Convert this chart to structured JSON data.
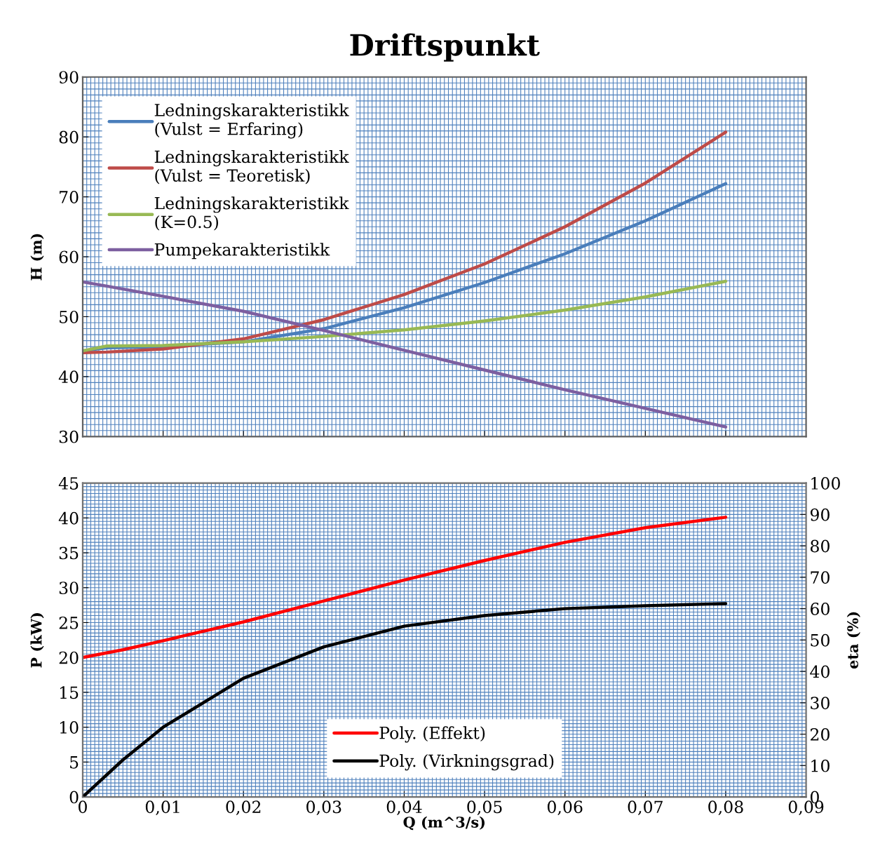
{
  "chart_data": [
    {
      "type": "line",
      "title": "Driftspunkt",
      "ylabel": "H (m)",
      "xlim": [
        0,
        0.09
      ],
      "xticks": [
        0,
        0.01,
        0.02,
        0.03,
        0.04,
        0.05,
        0.06,
        0.07,
        0.08,
        0.09
      ],
      "ylim": [
        30,
        90
      ],
      "yticks": [
        30,
        40,
        50,
        60,
        70,
        80,
        90
      ],
      "tick_labels": "y",
      "grid": true,
      "legend": "top left",
      "x": [
        0,
        0.003,
        0.01,
        0.02,
        0.03,
        0.04,
        0.05,
        0.06,
        0.07,
        0.08
      ],
      "series": [
        {
          "name": "Ledningskarakteristikk\n(Vulst = Erfaring)",
          "color": "#4a7ebb",
          "values": [
            44.3,
            44.8,
            45.0,
            45.8,
            48.0,
            51.5,
            55.7,
            60.5,
            66.0,
            72.2
          ]
        },
        {
          "name": "Ledningskarakteristikk\n(Vulst = Teoretisk)",
          "color": "#be4b48",
          "values": [
            44.0,
            44.1,
            44.6,
            46.3,
            49.5,
            53.7,
            58.8,
            65.0,
            72.3,
            80.8
          ]
        },
        {
          "name": "Ledningskarakteristikk\n(K=0.5)",
          "color": "#98b954",
          "values": [
            44.3,
            45.1,
            45.2,
            45.8,
            46.7,
            47.8,
            49.3,
            51.1,
            53.3,
            55.9
          ]
        },
        {
          "name": "Pumpekarakteristikk",
          "color": "#7d5fa0",
          "values": [
            55.8,
            55.1,
            53.4,
            50.9,
            47.7,
            44.4,
            41.1,
            37.8,
            34.7,
            31.6
          ]
        }
      ]
    },
    {
      "type": "line",
      "xlabel": "Q (m^3/s)",
      "ylabel": "P (kW)",
      "y2label": "eta (%)",
      "xlim": [
        0,
        0.09
      ],
      "xticks": [
        0,
        {
          "value": 0.01,
          "label": "0,01"
        },
        {
          "value": 0.02,
          "label": "0,02"
        },
        {
          "value": 0.03,
          "label": "0,03"
        },
        {
          "value": 0.04,
          "label": "0,04"
        },
        {
          "value": 0.05,
          "label": "0,05"
        },
        {
          "value": 0.06,
          "label": "0,06"
        },
        {
          "value": 0.07,
          "label": "0,07"
        },
        {
          "value": 0.08,
          "label": "0,08"
        },
        {
          "value": 0.09,
          "label": "0,09"
        }
      ],
      "ylim": [
        0,
        45
      ],
      "yticks": [
        0,
        5,
        10,
        15,
        20,
        25,
        30,
        35,
        40,
        45
      ],
      "y2lim": [
        0,
        100
      ],
      "y2ticks": [
        0,
        10,
        20,
        30,
        40,
        50,
        60,
        70,
        80,
        90,
        100
      ],
      "grid": true,
      "legend": "bottom",
      "x": [
        0,
        0.005,
        0.01,
        0.02,
        0.03,
        0.04,
        0.05,
        0.06,
        0.07,
        0.08
      ],
      "series": [
        {
          "name": "Poly. (Effekt)",
          "color": "#ff0000",
          "values": [
            20.0,
            21.1,
            22.4,
            25.1,
            28.1,
            31.1,
            33.9,
            36.5,
            38.6,
            40.1
          ]
        },
        {
          "name": "Poly. (Virkningsgrad)",
          "color": "#000000",
          "axis": "y2",
          "values": [
            0,
            11.8,
            22.2,
            37.8,
            47.8,
            54.4,
            57.8,
            60.0,
            60.9,
            61.6
          ]
        }
      ]
    }
  ]
}
